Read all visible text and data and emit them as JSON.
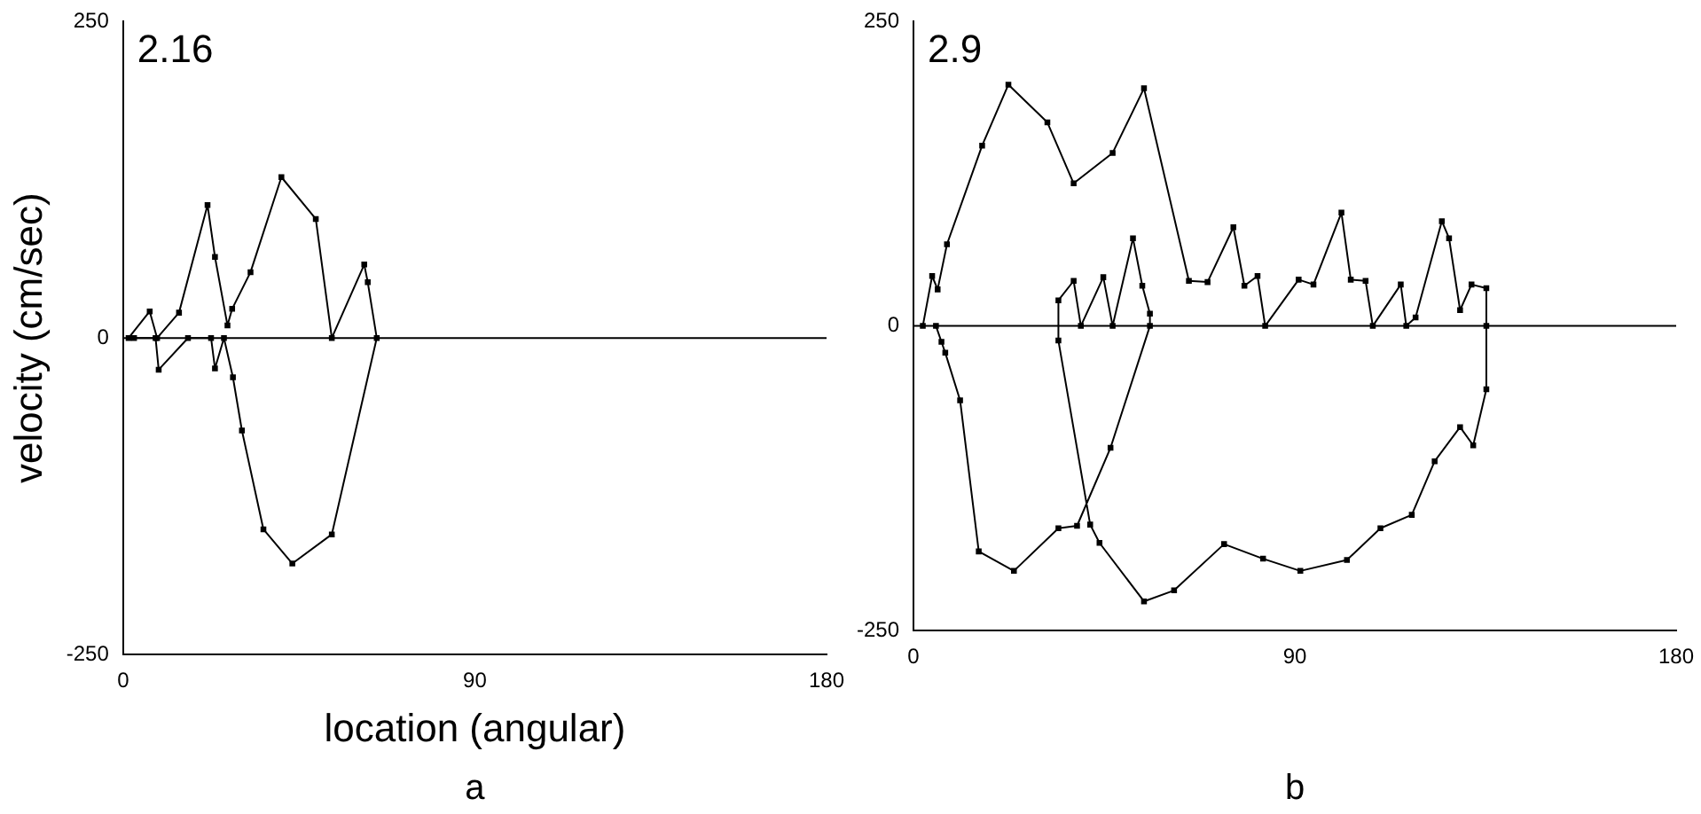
{
  "chart_data": [
    {
      "type": "line",
      "xlabel": "location (angular)",
      "ylabel": "velocity (cm/sec)",
      "annotations": [
        "2.16",
        "a"
      ],
      "xlim": [
        0,
        180
      ],
      "xticks": [
        0,
        90,
        180
      ],
      "ylim": [
        -250,
        250
      ],
      "yticks": [
        -250,
        0,
        250
      ],
      "marker": "square",
      "ref_lines": [
        {
          "axis": "y",
          "value": 0
        }
      ],
      "series": [
        {
          "color": "#000000",
          "x": [
            1.4,
            6.8,
            8.7,
            14.3,
            21.6,
            23.5,
            26.7,
            27.9,
            32.6,
            40.5,
            49.3,
            53.4,
            61.7,
            62.6,
            64.9,
            53.4,
            43.3,
            35.9,
            30.4,
            28.1,
            25.8,
            23.5,
            22.5,
            16.6,
            9.1,
            8.3,
            2.8
          ],
          "values": [
            0,
            21,
            0,
            20,
            105,
            64,
            10,
            23,
            52,
            127,
            94,
            0,
            58,
            44,
            0,
            -155,
            -178,
            -151,
            -73,
            -31,
            0,
            -24,
            0,
            0,
            -25,
            0,
            0
          ]
        }
      ]
    },
    {
      "type": "line",
      "annotations": [
        "2.9",
        "b"
      ],
      "xlim": [
        0,
        180
      ],
      "xticks": [
        0,
        90,
        180
      ],
      "ylim": [
        -250,
        250
      ],
      "yticks": [
        -250,
        0,
        250
      ],
      "marker": "square",
      "ref_lines": [
        {
          "axis": "y",
          "value": 0
        }
      ],
      "series": [
        {
          "color": "#000000",
          "x": [
            2.2,
            4.4,
            5.7,
            7.9,
            16.2,
            22.4,
            31.6,
            37.8,
            47,
            54.4,
            65,
            69.4,
            75.5,
            78.1,
            81.2,
            83,
            90.9,
            94.4,
            101,
            103.2,
            106.7,
            108.4,
            115,
            116.3,
            118.5,
            124.7,
            126.4,
            129,
            131.7,
            135.2,
            135.2,
            135.2,
            132.1,
            129,
            123,
            117.6,
            110.2,
            102.3,
            91.3,
            82.5,
            73.3,
            61.5,
            54.4,
            43.9,
            41.7,
            34.2,
            34.2,
            37.8,
            39.5,
            44.8,
            47,
            51.8,
            54,
            55.8,
            55.8,
            46.5,
            38.6,
            34.2,
            23.7,
            15.4,
            11,
            7.5,
            6.6,
            5.3
          ],
          "values": [
            0,
            41,
            30,
            67,
            148,
            198,
            167,
            117,
            142,
            195,
            37,
            36,
            81,
            33,
            41,
            0,
            38,
            34,
            93,
            38,
            37,
            0,
            34,
            0,
            7,
            86,
            72,
            13,
            34,
            31,
            0,
            -52,
            -98,
            -83,
            -111,
            -155,
            -166,
            -192,
            -201,
            -191,
            -179,
            -217,
            -226,
            -178,
            -163,
            -12,
            21,
            37,
            0,
            40,
            0,
            72,
            33,
            10,
            0,
            -100,
            -164,
            -166,
            -201,
            -185,
            -61,
            -22,
            -13,
            0
          ]
        }
      ]
    }
  ]
}
